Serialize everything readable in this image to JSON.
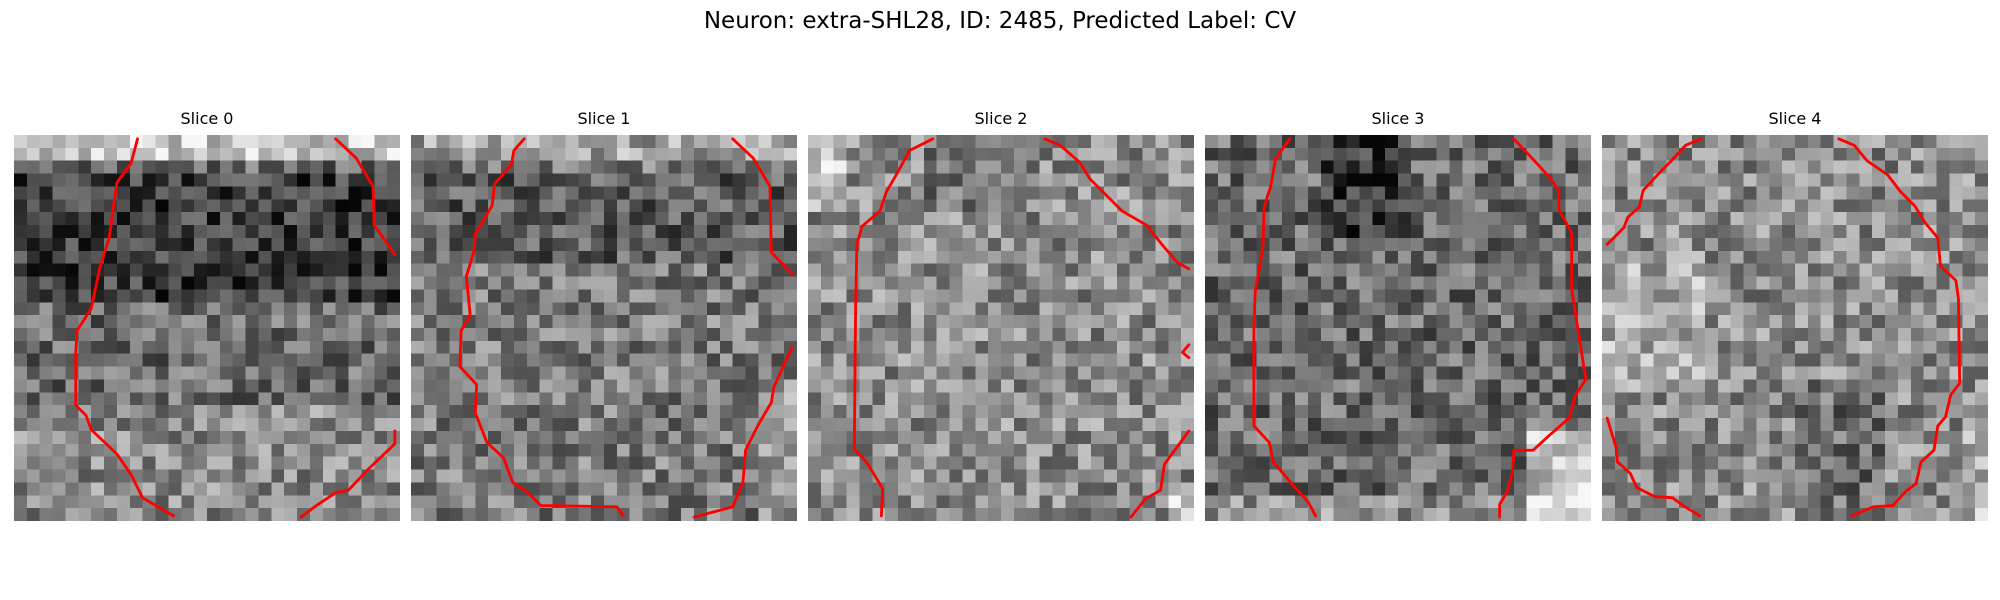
{
  "figure": {
    "title": "Neuron: extra-SHL28, ID: 2485, Predicted Label: CV"
  },
  "colors": {
    "contour": "#ff0000"
  },
  "slices": [
    {
      "label": "Slice 0"
    },
    {
      "label": "Slice 1"
    },
    {
      "label": "Slice 2"
    },
    {
      "label": "Slice 3"
    },
    {
      "label": "Slice 4"
    }
  ]
}
